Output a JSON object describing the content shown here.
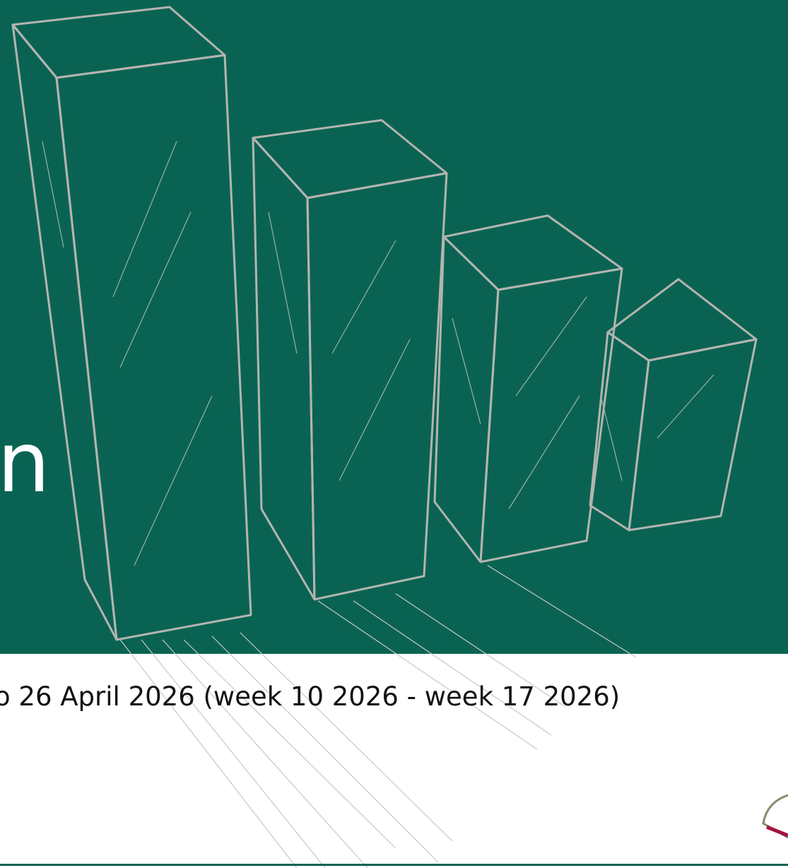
{
  "slide": {
    "title": "n",
    "subtitle": "o 26 April 2026 (week 10 2026 - week 17 2026)"
  }
}
